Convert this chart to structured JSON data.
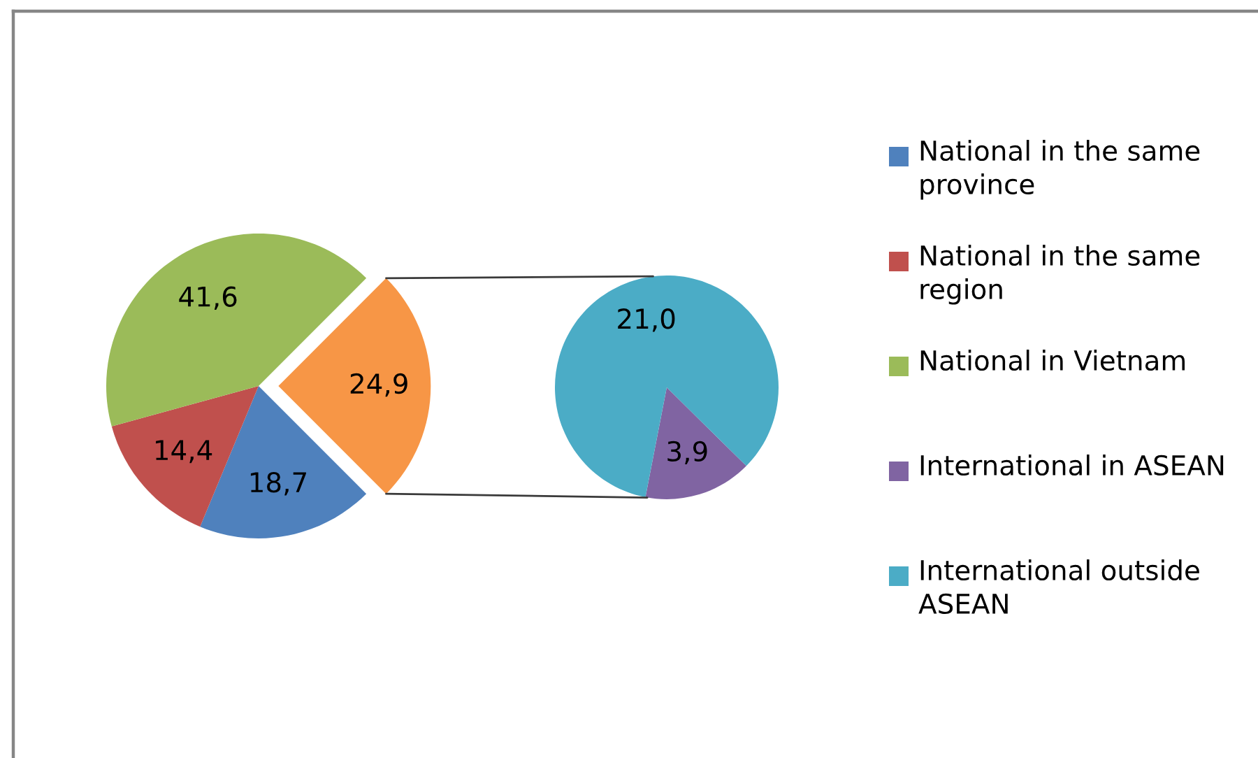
{
  "chart_data": [
    {
      "type": "pie",
      "categories": [
        "National in the same province",
        "National in the same region",
        "National in Vietnam",
        null
      ],
      "values": [
        18.7,
        14.4,
        41.6,
        24.9
      ],
      "colors": [
        "#4f81bd",
        "#c0504d",
        "#9bbb59",
        "#f79646"
      ],
      "value_labels": [
        "18,7",
        "14,4",
        "41,6",
        "24,9"
      ],
      "legend": "right"
    },
    {
      "type": "pie",
      "categories": [
        "International in ASEAN",
        "International outside ASEAN"
      ],
      "values": [
        3.9,
        21.0
      ],
      "colors": [
        "#8064a2",
        "#4bacc6"
      ],
      "value_labels": [
        "3,9",
        "21,0"
      ],
      "legend": "right"
    }
  ]
}
